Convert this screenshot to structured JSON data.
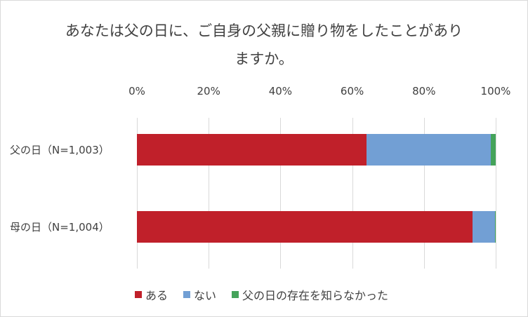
{
  "chart_data": {
    "type": "bar",
    "orientation": "horizontal",
    "stacked": "percent",
    "title": "あなたは父の日に、ご自身の父親に贈り物をしたことがありますか。",
    "title_lines": [
      "あなたは父の日に、ご自身の父親に贈り物をしたことがあり",
      "ますか。"
    ],
    "categories": [
      "父の日（N=1,003）",
      "母の日（N=1,004）"
    ],
    "series": [
      {
        "name": "ある",
        "color": "#C0202A",
        "values": [
          64.0,
          93.6
        ]
      },
      {
        "name": "ない",
        "color": "#729FD4",
        "values": [
          34.7,
          6.3
        ]
      },
      {
        "name": "父の日の存在を知らなかった",
        "color": "#44A35A",
        "values": [
          1.3,
          0.1
        ]
      }
    ],
    "xlim": [
      0,
      100
    ],
    "x_ticks": [
      "0%",
      "20%",
      "40%",
      "60%",
      "80%",
      "100%"
    ],
    "x_axis_position": "top",
    "grid": true,
    "legend_position": "bottom"
  }
}
